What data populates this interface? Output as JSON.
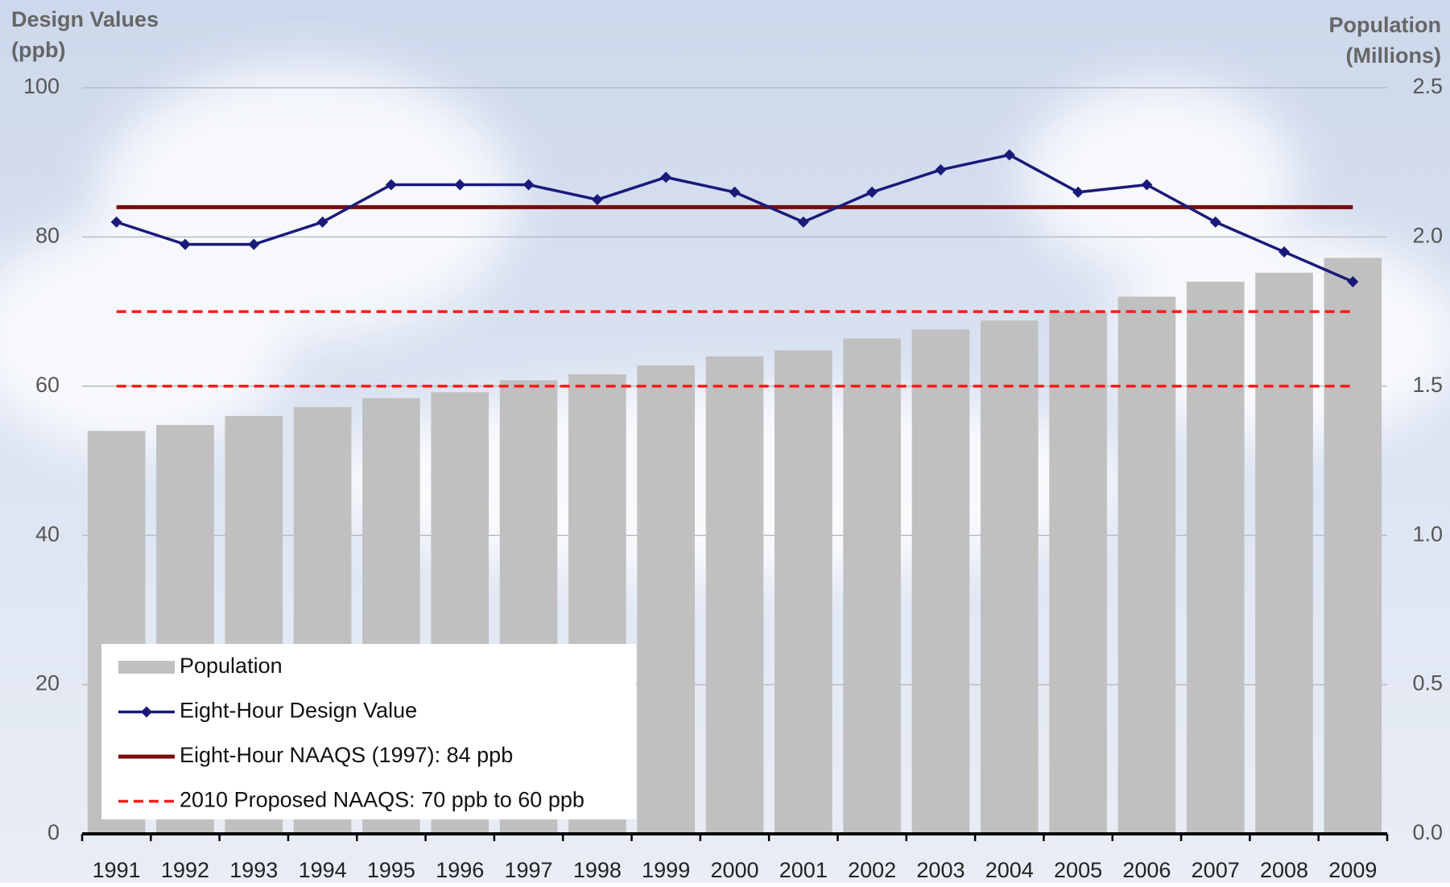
{
  "chart_data": {
    "type": "bar-line",
    "ylabel": [
      "Design Values",
      "(ppb)"
    ],
    "y2label": [
      "Population",
      "(Millions)"
    ],
    "categories": [
      "1991",
      "1992",
      "1993",
      "1994",
      "1995",
      "1996",
      "1997",
      "1998",
      "1999",
      "2000",
      "2001",
      "2002",
      "2003",
      "2004",
      "2005",
      "2006",
      "2007",
      "2008",
      "2009"
    ],
    "series": [
      {
        "name": "Population",
        "type": "bar",
        "axis": "y2",
        "color": "#c0c0c0",
        "values": [
          1.35,
          1.37,
          1.4,
          1.43,
          1.46,
          1.48,
          1.52,
          1.54,
          1.57,
          1.6,
          1.62,
          1.66,
          1.69,
          1.72,
          1.75,
          1.8,
          1.85,
          1.88,
          1.93
        ]
      },
      {
        "name": "Eight-Hour Design Value",
        "type": "line",
        "color": "#1a1a7a",
        "values": [
          82,
          79,
          79,
          82,
          87,
          87,
          87,
          85,
          88,
          86,
          82,
          86,
          89,
          91,
          86,
          87,
          82,
          78,
          74
        ]
      }
    ],
    "reference_lines": [
      {
        "name": "Eight-Hour NAAQS (1997): 84 ppb",
        "color": "#7a0c0c",
        "style": "solid",
        "values": [
          84
        ]
      },
      {
        "name": "2010 Proposed NAAQS: 70 ppb to 60 ppb",
        "color": "#ff1a1a",
        "style": "dashed",
        "values": [
          70,
          60
        ]
      }
    ],
    "ylim": [
      0,
      100
    ],
    "yticks": [
      0,
      20,
      40,
      60,
      80,
      100
    ],
    "y2lim": [
      0,
      2.5
    ],
    "y2ticks": [
      {
        "value": 0,
        "label": "0.0"
      },
      0.5,
      {
        "value": 1,
        "label": "1.0"
      },
      1.5,
      {
        "value": 2,
        "label": "2.0"
      },
      2.5
    ],
    "grid": true,
    "legend": "bottom-left"
  }
}
